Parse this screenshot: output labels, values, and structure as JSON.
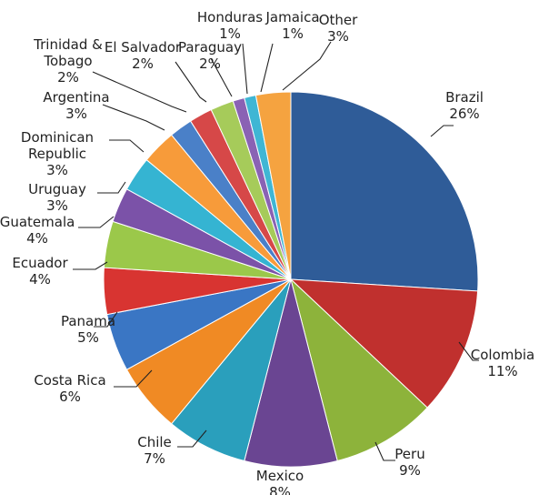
{
  "chart_data": {
    "type": "pie",
    "title": "",
    "slices": [
      {
        "name": "Brazil",
        "value": 26,
        "label": "26%",
        "color": "#2F5C98"
      },
      {
        "name": "Colombia",
        "value": 11,
        "label": "11%",
        "color": "#C0302E"
      },
      {
        "name": "Peru",
        "value": 9,
        "label": "9%",
        "color": "#8DB33B"
      },
      {
        "name": "Mexico",
        "value": 8,
        "label": "8%",
        "color": "#6A4592"
      },
      {
        "name": "Chile",
        "value": 7,
        "label": "7%",
        "color": "#2A9FBC"
      },
      {
        "name": "Costa Rica",
        "value": 6,
        "label": "6%",
        "color": "#F08A24"
      },
      {
        "name": "Panama",
        "value": 5,
        "label": "5%",
        "color": "#3A76C4"
      },
      {
        "name": "Ecuador",
        "value": 4,
        "label": "4%",
        "color": "#D83431"
      },
      {
        "name": "Guatemala",
        "value": 4,
        "label": "4%",
        "color": "#9BC84A"
      },
      {
        "name": "Uruguay",
        "value": 3,
        "label": "3%",
        "color": "#7B52A8"
      },
      {
        "name": "Dominican Republic",
        "value": 3,
        "label": "3%",
        "color": "#35B4D2"
      },
      {
        "name": "Argentina",
        "value": 3,
        "label": "3%",
        "color": "#F79B3A"
      },
      {
        "name": "Trinidad & Tobago",
        "value": 2,
        "label": "2%",
        "color": "#4A80C8"
      },
      {
        "name": "El Salvador",
        "value": 2,
        "label": "2%",
        "color": "#D64848"
      },
      {
        "name": "Paraguay",
        "value": 2,
        "label": "2%",
        "color": "#A6CB5A"
      },
      {
        "name": "Honduras",
        "value": 1,
        "label": "1%",
        "color": "#8A62B4"
      },
      {
        "name": "Jamaica",
        "value": 1,
        "label": "1%",
        "color": "#3FB6D4"
      },
      {
        "name": "Other",
        "value": 3,
        "label": "3%",
        "color": "#F5A340"
      }
    ]
  }
}
